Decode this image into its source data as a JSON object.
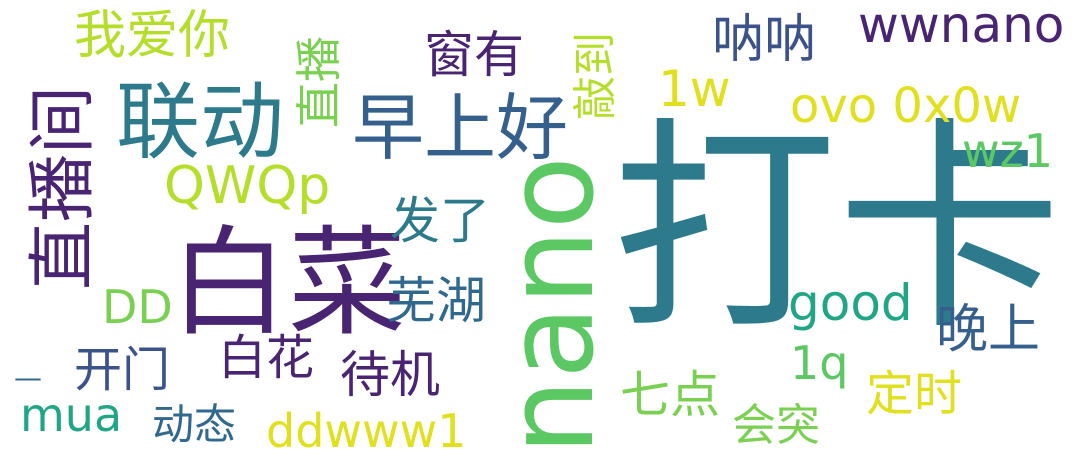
{
  "words": [
    {
      "text": "打卡",
      "color": "#2c7a8c"
    },
    {
      "text": "nano",
      "color": "#5bc863"
    },
    {
      "text": "白菜",
      "color": "#482473"
    },
    {
      "text": "联动",
      "color": "#2c7a8c"
    },
    {
      "text": "早上好",
      "color": "#35608d"
    },
    {
      "text": "直播间",
      "color": "#482473"
    },
    {
      "text": "wwnano",
      "color": "#482473"
    },
    {
      "text": "我爱你",
      "color": "#b5de2b"
    },
    {
      "text": "直播",
      "color": "#7ad151"
    },
    {
      "text": "窗有",
      "color": "#482473"
    },
    {
      "text": "敲到",
      "color": "#b5de2b"
    },
    {
      "text": "呐呐",
      "color": "#3b528b"
    },
    {
      "text": "1w",
      "color": "#e0e01f"
    },
    {
      "text": "ovo 0x0w",
      "color": "#e0e01f"
    },
    {
      "text": "wz1",
      "color": "#5bc863"
    },
    {
      "text": "QWQp",
      "color": "#b5de2b"
    },
    {
      "text": "发了",
      "color": "#2c7a8c"
    },
    {
      "text": "good",
      "color": "#21a685"
    },
    {
      "text": "DD",
      "color": "#7ad151"
    },
    {
      "text": "芜湖",
      "color": "#31688e"
    },
    {
      "text": "晚上",
      "color": "#35608d"
    },
    {
      "text": "白花",
      "color": "#482473"
    },
    {
      "text": "开门",
      "color": "#3b528b"
    },
    {
      "text": "待机",
      "color": "#482473"
    },
    {
      "text": "1q",
      "color": "#5bc863"
    },
    {
      "text": "—",
      "color": "#31688e"
    },
    {
      "text": "七点",
      "color": "#7ad151"
    },
    {
      "text": "定时",
      "color": "#e0e01f"
    },
    {
      "text": "mua",
      "color": "#21a685"
    },
    {
      "text": "动态",
      "color": "#31688e"
    },
    {
      "text": "ddwww1",
      "color": "#e0e01f"
    },
    {
      "text": "会突",
      "color": "#7ad151"
    }
  ]
}
